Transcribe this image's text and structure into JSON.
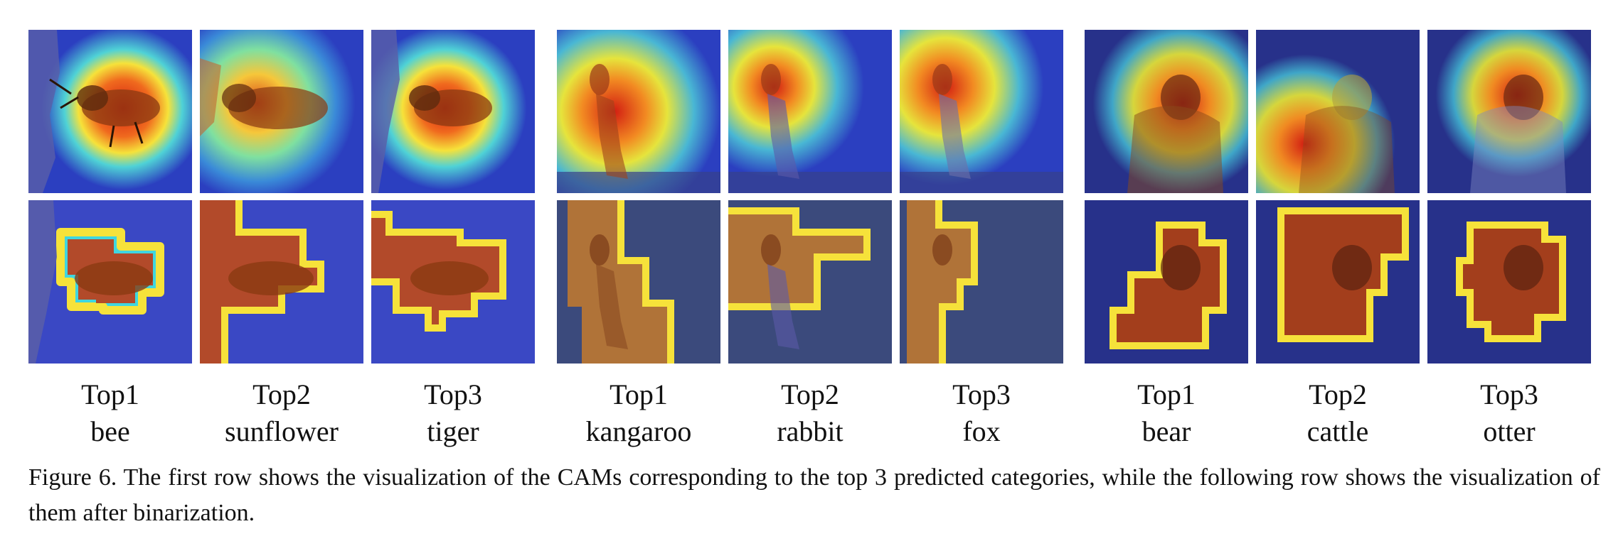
{
  "groups": [
    {
      "subject": "bee",
      "labels": [
        {
          "rank": "Top1",
          "category": "bee"
        },
        {
          "rank": "Top2",
          "category": "sunflower"
        },
        {
          "rank": "Top3",
          "category": "tiger"
        }
      ]
    },
    {
      "subject": "kangaroo",
      "labels": [
        {
          "rank": "Top1",
          "category": "kangaroo"
        },
        {
          "rank": "Top2",
          "category": "rabbit"
        },
        {
          "rank": "Top3",
          "category": "fox"
        }
      ]
    },
    {
      "subject": "bear",
      "labels": [
        {
          "rank": "Top1",
          "category": "bear"
        },
        {
          "rank": "Top2",
          "category": "cattle"
        },
        {
          "rank": "Top3",
          "category": "otter"
        }
      ]
    }
  ],
  "caption": "Figure 6. The first row shows the visualization of the CAMs corresponding to the top 3 predicted categories, while the following row shows the visualization of them after binarization.",
  "colors": {
    "heat_low": "#2b3fc0",
    "heat_mid": "#f6e23a",
    "heat_high": "#d21d12"
  }
}
